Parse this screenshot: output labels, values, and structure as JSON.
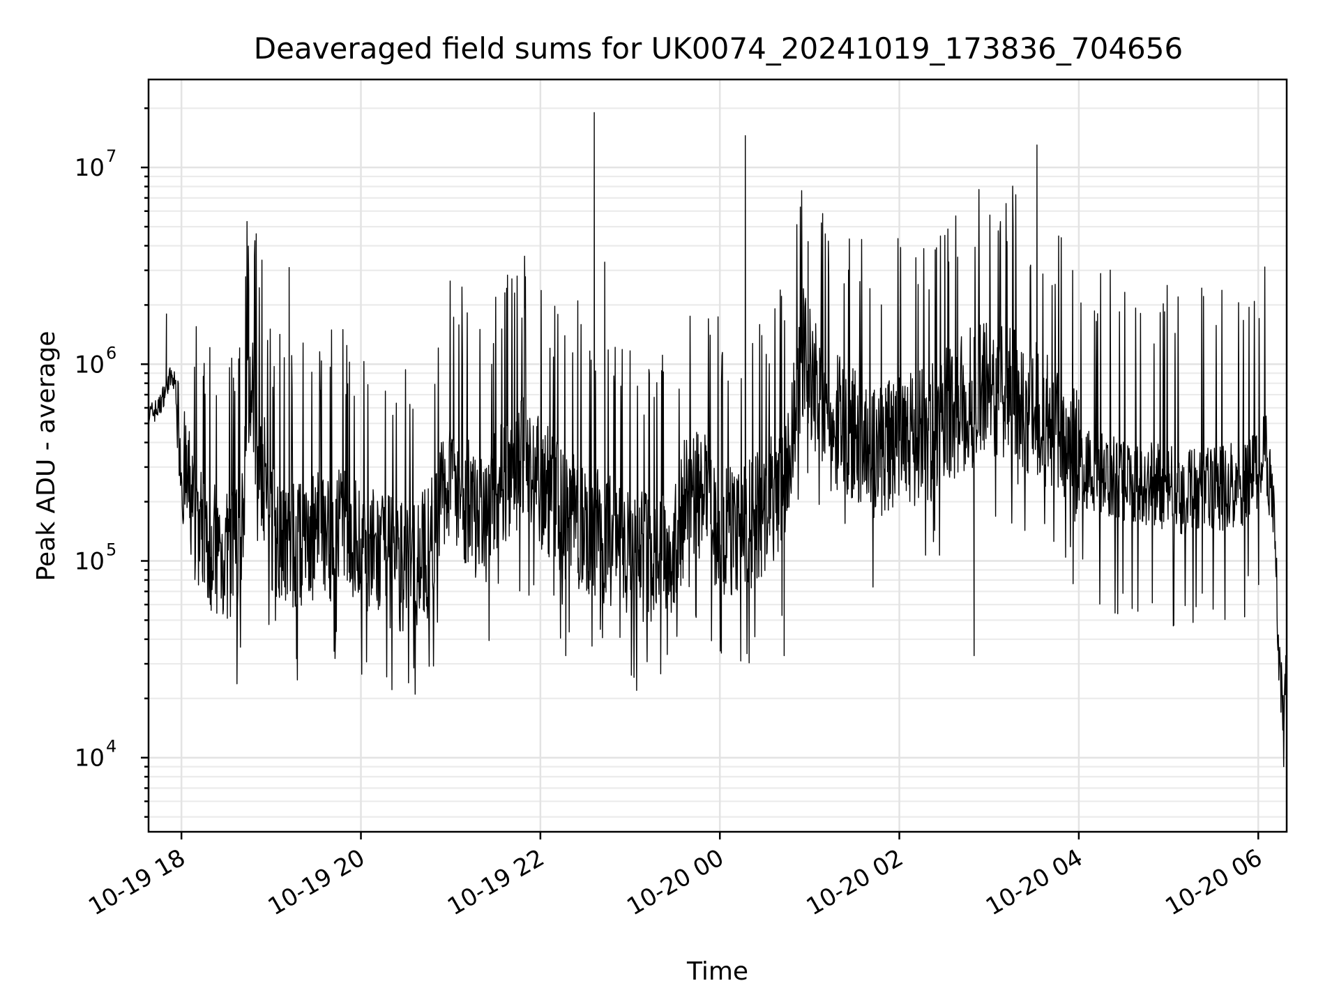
{
  "chart_data": {
    "type": "line",
    "title": "Deaveraged field sums for UK0074_20241019_173836_704656",
    "xlabel": "Time",
    "ylabel": "Peak ADU - average",
    "yscale": "log",
    "ylim": [
      4200,
      28000000
    ],
    "xlim": [
      "2024-10-19 17:38",
      "2024-10-20 06:19"
    ],
    "grid": true,
    "xticks": [
      {
        "label": "10-19 18",
        "value": "2024-10-19 18:00"
      },
      {
        "label": "10-19 20",
        "value": "2024-10-19 20:00"
      },
      {
        "label": "10-19 22",
        "value": "2024-10-19 22:00"
      },
      {
        "label": "10-20 00",
        "value": "2024-10-20 00:00"
      },
      {
        "label": "10-20 02",
        "value": "2024-10-20 02:00"
      },
      {
        "label": "10-20 04",
        "value": "2024-10-20 04:00"
      },
      {
        "label": "10-20 06",
        "value": "2024-10-20 06:00"
      }
    ],
    "yticks": [
      {
        "base": "10",
        "exp": "4",
        "value": 10000
      },
      {
        "base": "10",
        "exp": "5",
        "value": 100000
      },
      {
        "base": "10",
        "exp": "6",
        "value": 1000000
      },
      {
        "base": "10",
        "exp": "7",
        "value": 10000000
      }
    ],
    "series": [
      {
        "color": "#000000",
        "points": [
          [
            "2024-10-19 17:38",
            550000
          ],
          [
            "2024-10-19 17:45",
            600000
          ],
          [
            "2024-10-19 17:52",
            850000
          ],
          [
            "2024-10-19 17:56",
            800000
          ],
          [
            "2024-10-19 18:00",
            300000
          ],
          [
            "2024-10-19 18:10",
            160000
          ],
          [
            "2024-10-19 18:20",
            120000
          ],
          [
            "2024-10-19 18:30",
            105000
          ],
          [
            "2024-10-19 18:40",
            110000
          ],
          [
            "2024-10-19 18:45",
            800000
          ],
          [
            "2024-10-19 18:50",
            500000
          ],
          [
            "2024-10-19 19:00",
            150000
          ],
          [
            "2024-10-19 19:15",
            120000
          ],
          [
            "2024-10-19 19:30",
            130000
          ],
          [
            "2024-10-19 19:45",
            140000
          ],
          [
            "2024-10-19 20:00",
            120000
          ],
          [
            "2024-10-19 20:15",
            100000
          ],
          [
            "2024-10-19 20:30",
            95000
          ],
          [
            "2024-10-19 20:45",
            110000
          ],
          [
            "2024-10-19 21:00",
            300000
          ],
          [
            "2024-10-19 21:10",
            200000
          ],
          [
            "2024-10-19 21:20",
            150000
          ],
          [
            "2024-10-19 21:35",
            250000
          ],
          [
            "2024-10-19 21:50",
            350000
          ],
          [
            "2024-10-19 22:00",
            250000
          ],
          [
            "2024-10-19 22:15",
            180000
          ],
          [
            "2024-10-19 22:30",
            150000
          ],
          [
            "2024-10-19 22:45",
            130000
          ],
          [
            "2024-10-19 23:00",
            110000
          ],
          [
            "2024-10-19 23:15",
            100000
          ],
          [
            "2024-10-19 23:30",
            120000
          ],
          [
            "2024-10-19 23:40",
            250000
          ],
          [
            "2024-10-19 23:50",
            200000
          ],
          [
            "2024-10-20 00:00",
            150000
          ],
          [
            "2024-10-20 00:15",
            140000
          ],
          [
            "2024-10-20 00:30",
            180000
          ],
          [
            "2024-10-20 00:45",
            250000
          ],
          [
            "2024-10-20 00:55",
            1200000
          ],
          [
            "2024-10-20 01:00",
            900000
          ],
          [
            "2024-10-20 01:15",
            500000
          ],
          [
            "2024-10-20 01:30",
            450000
          ],
          [
            "2024-10-20 01:45",
            350000
          ],
          [
            "2024-10-20 02:00",
            400000
          ],
          [
            "2024-10-20 02:20",
            450000
          ],
          [
            "2024-10-20 02:40",
            600000
          ],
          [
            "2024-10-20 03:00",
            800000
          ],
          [
            "2024-10-20 03:20",
            700000
          ],
          [
            "2024-10-20 03:40",
            500000
          ],
          [
            "2024-10-20 03:55",
            350000
          ],
          [
            "2024-10-20 04:10",
            280000
          ],
          [
            "2024-10-20 04:30",
            260000
          ],
          [
            "2024-10-20 04:50",
            250000
          ],
          [
            "2024-10-20 05:10",
            220000
          ],
          [
            "2024-10-20 05:30",
            230000
          ],
          [
            "2024-10-20 05:50",
            250000
          ],
          [
            "2024-10-20 06:05",
            350000
          ],
          [
            "2024-10-20 06:10",
            200000
          ],
          [
            "2024-10-20 06:14",
            30000
          ],
          [
            "2024-10-20 06:17",
            15000
          ],
          [
            "2024-10-20 06:19",
            25000
          ]
        ],
        "peaks": [
          [
            "2024-10-19 17:50",
            1800000
          ],
          [
            "2024-10-19 18:45",
            2400000
          ],
          [
            "2024-10-19 19:12",
            3100000
          ],
          [
            "2024-10-19 22:25",
            2100000
          ],
          [
            "2024-10-19 22:36",
            19000000
          ],
          [
            "2024-10-19 22:43",
            3300000
          ],
          [
            "2024-10-20 00:17",
            14500000
          ],
          [
            "2024-10-20 00:59",
            4200000
          ],
          [
            "2024-10-20 02:39",
            3500000
          ],
          [
            "2024-10-20 03:12",
            4200000
          ],
          [
            "2024-10-20 03:32",
            13000000
          ]
        ],
        "dips": [
          [
            "2024-10-19 22:17",
            33000
          ],
          [
            "2024-10-20 00:01",
            34000
          ],
          [
            "2024-10-20 00:14",
            31000
          ],
          [
            "2024-10-20 00:43",
            33000
          ],
          [
            "2024-10-20 02:50",
            33000
          ],
          [
            "2024-10-20 06:17",
            9000
          ]
        ]
      }
    ]
  }
}
